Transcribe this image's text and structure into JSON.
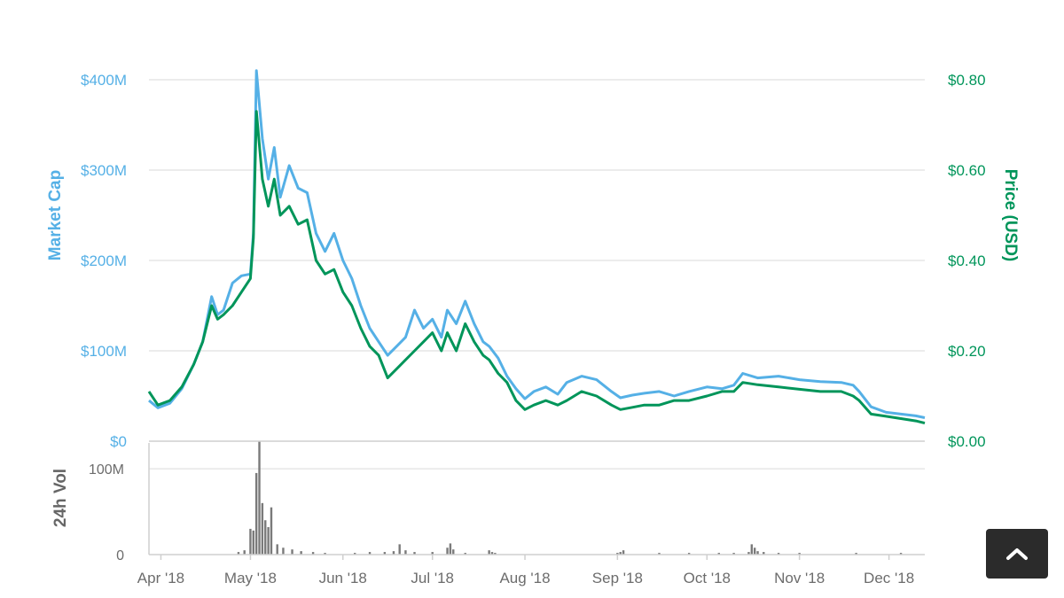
{
  "colors": {
    "market_cap": "#55b0e6",
    "price": "#00955a",
    "volume": "#7a7a7a",
    "grid": "#e6e6e6",
    "axis_text": "#6c6c6c",
    "button": "#2b2b2b"
  },
  "icons": {
    "scroll_top": "chevron-up-icon"
  },
  "chart_data": [
    {
      "type": "line",
      "ylabel_left": "Market Cap",
      "ylabel_right": "Price (USD)",
      "left_axis": {
        "ticks": [
          "$0",
          "$100M",
          "$200M",
          "$300M",
          "$400M"
        ],
        "ylim": [
          0,
          400
        ]
      },
      "right_axis": {
        "ticks": [
          "$0.00",
          "$0.20",
          "$0.40",
          "$0.60",
          "$0.80"
        ],
        "ylim": [
          0,
          0.8
        ]
      },
      "x_ticks": [
        "Apr '18",
        "May '18",
        "Jun '18",
        "Jul '18",
        "Aug '18",
        "Sep '18",
        "Oct '18",
        "Nov '18",
        "Dec '18"
      ],
      "xlim": [
        "2018-03-28",
        "2018-12-13"
      ],
      "grid": true,
      "series": [
        {
          "name": "Market Cap",
          "axis": "left",
          "x": [
            "2018-03-28",
            "2018-03-31",
            "2018-04-04",
            "2018-04-08",
            "2018-04-12",
            "2018-04-15",
            "2018-04-18",
            "2018-04-20",
            "2018-04-22",
            "2018-04-25",
            "2018-04-28",
            "2018-05-01",
            "2018-05-02",
            "2018-05-03",
            "2018-05-05",
            "2018-05-07",
            "2018-05-09",
            "2018-05-11",
            "2018-05-14",
            "2018-05-17",
            "2018-05-20",
            "2018-05-23",
            "2018-05-26",
            "2018-05-29",
            "2018-06-01",
            "2018-06-04",
            "2018-06-07",
            "2018-06-10",
            "2018-06-13",
            "2018-06-16",
            "2018-06-19",
            "2018-06-22",
            "2018-06-25",
            "2018-06-28",
            "2018-07-01",
            "2018-07-04",
            "2018-07-06",
            "2018-07-09",
            "2018-07-12",
            "2018-07-15",
            "2018-07-18",
            "2018-07-20",
            "2018-07-23",
            "2018-07-26",
            "2018-07-29",
            "2018-08-01",
            "2018-08-04",
            "2018-08-08",
            "2018-08-12",
            "2018-08-15",
            "2018-08-20",
            "2018-08-25",
            "2018-08-30",
            "2018-09-02",
            "2018-09-06",
            "2018-09-10",
            "2018-09-15",
            "2018-09-20",
            "2018-09-25",
            "2018-10-01",
            "2018-10-06",
            "2018-10-10",
            "2018-10-13",
            "2018-10-18",
            "2018-10-25",
            "2018-11-01",
            "2018-11-08",
            "2018-11-15",
            "2018-11-19",
            "2018-11-21",
            "2018-11-25",
            "2018-11-30",
            "2018-12-05",
            "2018-12-10",
            "2018-12-13"
          ],
          "values": [
            45,
            37,
            42,
            58,
            85,
            110,
            160,
            140,
            145,
            175,
            183,
            185,
            230,
            410,
            335,
            290,
            325,
            270,
            305,
            280,
            275,
            230,
            210,
            230,
            200,
            180,
            150,
            125,
            110,
            95,
            105,
            115,
            145,
            125,
            135,
            115,
            145,
            130,
            155,
            130,
            110,
            105,
            92,
            72,
            58,
            47,
            55,
            60,
            52,
            65,
            72,
            68,
            55,
            48,
            51,
            53,
            55,
            50,
            55,
            60,
            58,
            62,
            75,
            70,
            72,
            68,
            66,
            65,
            62,
            55,
            38,
            32,
            30,
            28,
            26
          ]
        },
        {
          "name": "Price (USD)",
          "axis": "right",
          "x": [
            "2018-03-28",
            "2018-03-31",
            "2018-04-04",
            "2018-04-08",
            "2018-04-12",
            "2018-04-15",
            "2018-04-18",
            "2018-04-20",
            "2018-04-22",
            "2018-04-25",
            "2018-04-28",
            "2018-05-01",
            "2018-05-02",
            "2018-05-03",
            "2018-05-05",
            "2018-05-07",
            "2018-05-09",
            "2018-05-11",
            "2018-05-14",
            "2018-05-17",
            "2018-05-20",
            "2018-05-23",
            "2018-05-26",
            "2018-05-29",
            "2018-06-01",
            "2018-06-04",
            "2018-06-07",
            "2018-06-10",
            "2018-06-13",
            "2018-06-16",
            "2018-06-19",
            "2018-06-22",
            "2018-06-25",
            "2018-06-28",
            "2018-07-01",
            "2018-07-04",
            "2018-07-06",
            "2018-07-09",
            "2018-07-12",
            "2018-07-15",
            "2018-07-18",
            "2018-07-20",
            "2018-07-23",
            "2018-07-26",
            "2018-07-29",
            "2018-08-01",
            "2018-08-04",
            "2018-08-08",
            "2018-08-12",
            "2018-08-15",
            "2018-08-20",
            "2018-08-25",
            "2018-08-30",
            "2018-09-02",
            "2018-09-06",
            "2018-09-10",
            "2018-09-15",
            "2018-09-20",
            "2018-09-25",
            "2018-10-01",
            "2018-10-06",
            "2018-10-10",
            "2018-10-13",
            "2018-10-18",
            "2018-10-25",
            "2018-11-01",
            "2018-11-08",
            "2018-11-15",
            "2018-11-19",
            "2018-11-21",
            "2018-11-25",
            "2018-11-30",
            "2018-12-05",
            "2018-12-10",
            "2018-12-13"
          ],
          "values": [
            0.11,
            0.08,
            0.09,
            0.12,
            0.17,
            0.22,
            0.3,
            0.27,
            0.28,
            0.3,
            0.33,
            0.36,
            0.45,
            0.73,
            0.58,
            0.52,
            0.58,
            0.5,
            0.52,
            0.48,
            0.49,
            0.4,
            0.37,
            0.38,
            0.33,
            0.3,
            0.25,
            0.21,
            0.19,
            0.14,
            0.16,
            0.18,
            0.2,
            0.22,
            0.24,
            0.2,
            0.24,
            0.2,
            0.26,
            0.22,
            0.19,
            0.18,
            0.15,
            0.13,
            0.09,
            0.07,
            0.08,
            0.09,
            0.08,
            0.09,
            0.11,
            0.1,
            0.08,
            0.07,
            0.075,
            0.08,
            0.08,
            0.09,
            0.09,
            0.1,
            0.11,
            0.11,
            0.13,
            0.125,
            0.12,
            0.115,
            0.11,
            0.11,
            0.1,
            0.09,
            0.06,
            0.055,
            0.05,
            0.045,
            0.04
          ]
        }
      ]
    },
    {
      "type": "bar",
      "ylabel": "24h Vol",
      "ticks": [
        "0",
        "100M"
      ],
      "ylim": [
        0,
        130
      ],
      "x": [
        "2018-04-27",
        "2018-04-29",
        "2018-05-01",
        "2018-05-02",
        "2018-05-03",
        "2018-05-04",
        "2018-05-05",
        "2018-05-06",
        "2018-05-07",
        "2018-05-08",
        "2018-05-10",
        "2018-05-12",
        "2018-05-15",
        "2018-05-18",
        "2018-05-22",
        "2018-05-26",
        "2018-06-05",
        "2018-06-10",
        "2018-06-15",
        "2018-06-18",
        "2018-06-20",
        "2018-06-22",
        "2018-06-25",
        "2018-07-01",
        "2018-07-06",
        "2018-07-07",
        "2018-07-08",
        "2018-07-12",
        "2018-07-20",
        "2018-07-21",
        "2018-07-22",
        "2018-09-01",
        "2018-09-02",
        "2018-09-03",
        "2018-09-15",
        "2018-09-25",
        "2018-10-05",
        "2018-10-10",
        "2018-10-15",
        "2018-10-16",
        "2018-10-17",
        "2018-10-18",
        "2018-10-20",
        "2018-10-25",
        "2018-11-01",
        "2018-11-20",
        "2018-12-05"
      ],
      "values": [
        3,
        5,
        30,
        28,
        95,
        132,
        60,
        40,
        32,
        55,
        12,
        8,
        6,
        4,
        3,
        2,
        2,
        3,
        3,
        4,
        12,
        5,
        3,
        3,
        8,
        13,
        6,
        2,
        5,
        3,
        2,
        2,
        3,
        5,
        2,
        2,
        2,
        2,
        3,
        12,
        8,
        4,
        3,
        2,
        2,
        2,
        2
      ]
    }
  ]
}
